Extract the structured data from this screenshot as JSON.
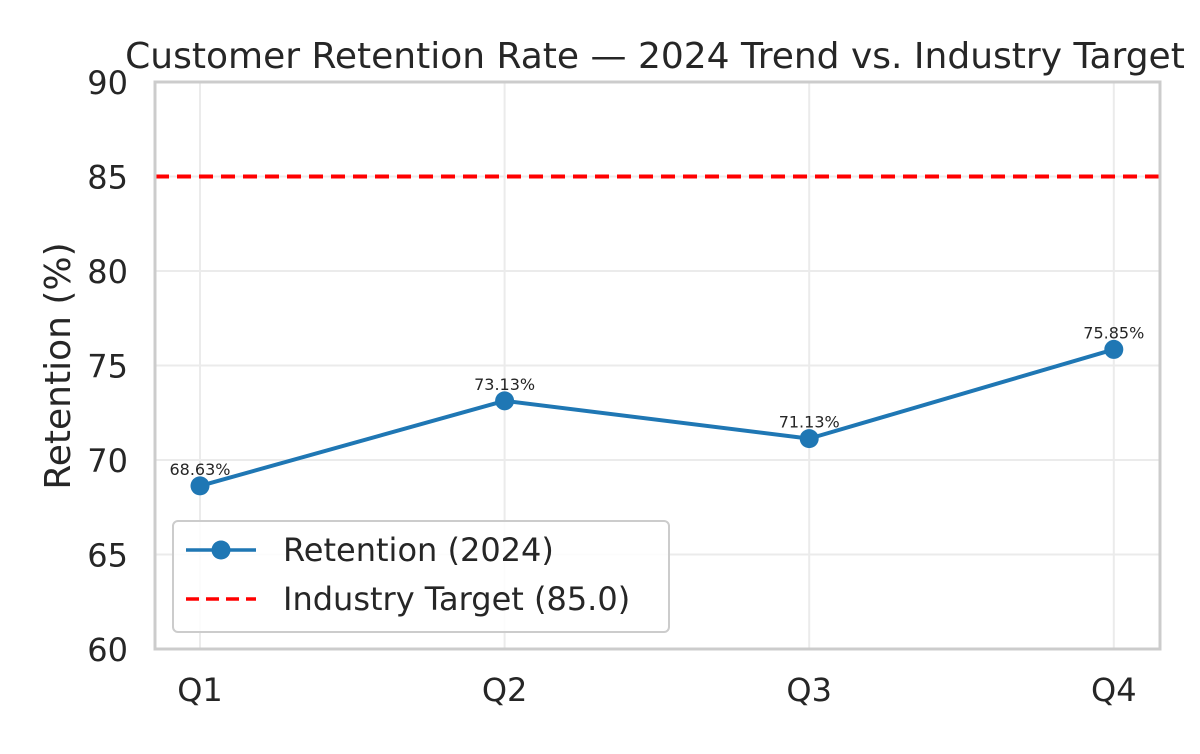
{
  "chart_data": {
    "type": "line",
    "title": "Customer Retention Rate — 2024 Trend vs. Industry Target",
    "xlabel": "",
    "ylabel": "Retention (%)",
    "categories": [
      "Q1",
      "Q2",
      "Q3",
      "Q4"
    ],
    "ylim": [
      60,
      90
    ],
    "yticks": [
      60,
      65,
      70,
      75,
      80,
      85,
      90
    ],
    "grid": true,
    "legend_position": "lower-left",
    "series": [
      {
        "name": "Retention (2024)",
        "values": [
          68.63,
          73.13,
          71.13,
          75.85
        ],
        "data_labels": [
          "68.63%",
          "73.13%",
          "71.13%",
          "75.85%"
        ],
        "color": "#1f77b4",
        "marker": "circle"
      }
    ],
    "reference_line": {
      "name": "Industry Target (85.0)",
      "value": 85.0,
      "color": "#ff0000",
      "style": "dashed"
    }
  }
}
